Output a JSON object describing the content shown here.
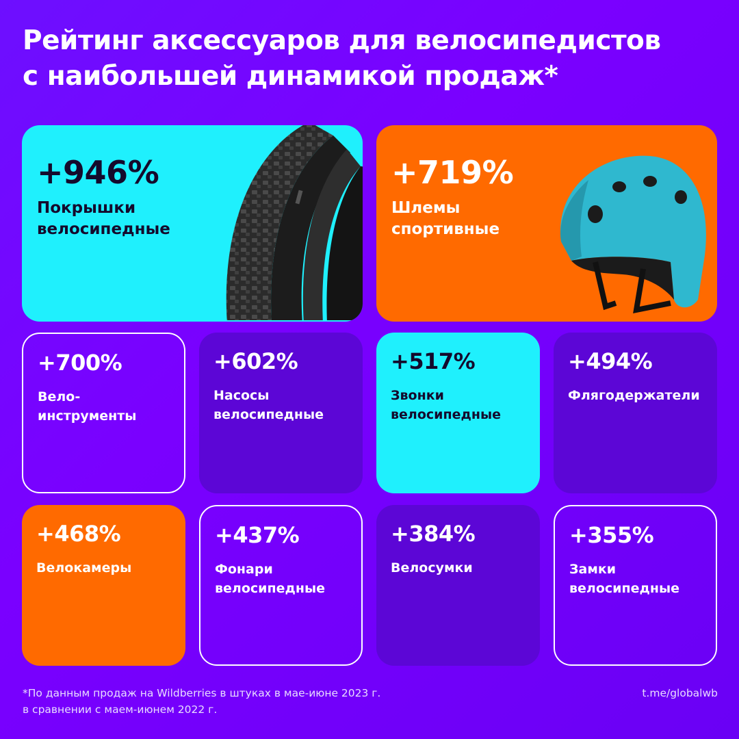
{
  "title": {
    "line1": "Рейтинг аксессуаров для велосипедистов",
    "line2": "с наибольшей динамикой продаж*"
  },
  "cards": [
    {
      "id": "tires",
      "pct": "+946%",
      "label_lines": [
        "Покрышки",
        "велосипедные"
      ],
      "icon": "bicycle-tire-image"
    },
    {
      "id": "helmets",
      "pct": "+719%",
      "label_lines": [
        "Шлемы",
        "спортивные"
      ],
      "icon": "sport-helmet-image"
    },
    {
      "id": "tools",
      "pct": "+700%",
      "label_lines": [
        "Вело-",
        "инструменты"
      ]
    },
    {
      "id": "pumps",
      "pct": "+602%",
      "label_lines": [
        "Насосы",
        "велосипедные"
      ]
    },
    {
      "id": "bells",
      "pct": "+517%",
      "label_lines": [
        "Звонки",
        "велосипедные"
      ]
    },
    {
      "id": "bottle-holders",
      "pct": "+494%",
      "label_lines": [
        "Флягодержатели"
      ]
    },
    {
      "id": "tubes",
      "pct": "+468%",
      "label_lines": [
        "Велокамеры"
      ]
    },
    {
      "id": "lights",
      "pct": "+437%",
      "label_lines": [
        "Фонари",
        "велосипедные"
      ]
    },
    {
      "id": "bags",
      "pct": "+384%",
      "label_lines": [
        "Велосумки"
      ]
    },
    {
      "id": "locks",
      "pct": "+355%",
      "label_lines": [
        "Замки",
        "велосипедные"
      ]
    }
  ],
  "footnote": {
    "line1": "*По данным продаж на Wildberries в штуках в мае-июне 2023 г.",
    "line2": "в сравнении с маем-июнем 2022 г."
  },
  "handle": "t.me/globalwb",
  "colors": {
    "background": "#7000ff",
    "cyan": "#1ff0fd",
    "orange": "#ff6a00",
    "deep_purple": "#5c06d6",
    "white": "#ffffff"
  }
}
